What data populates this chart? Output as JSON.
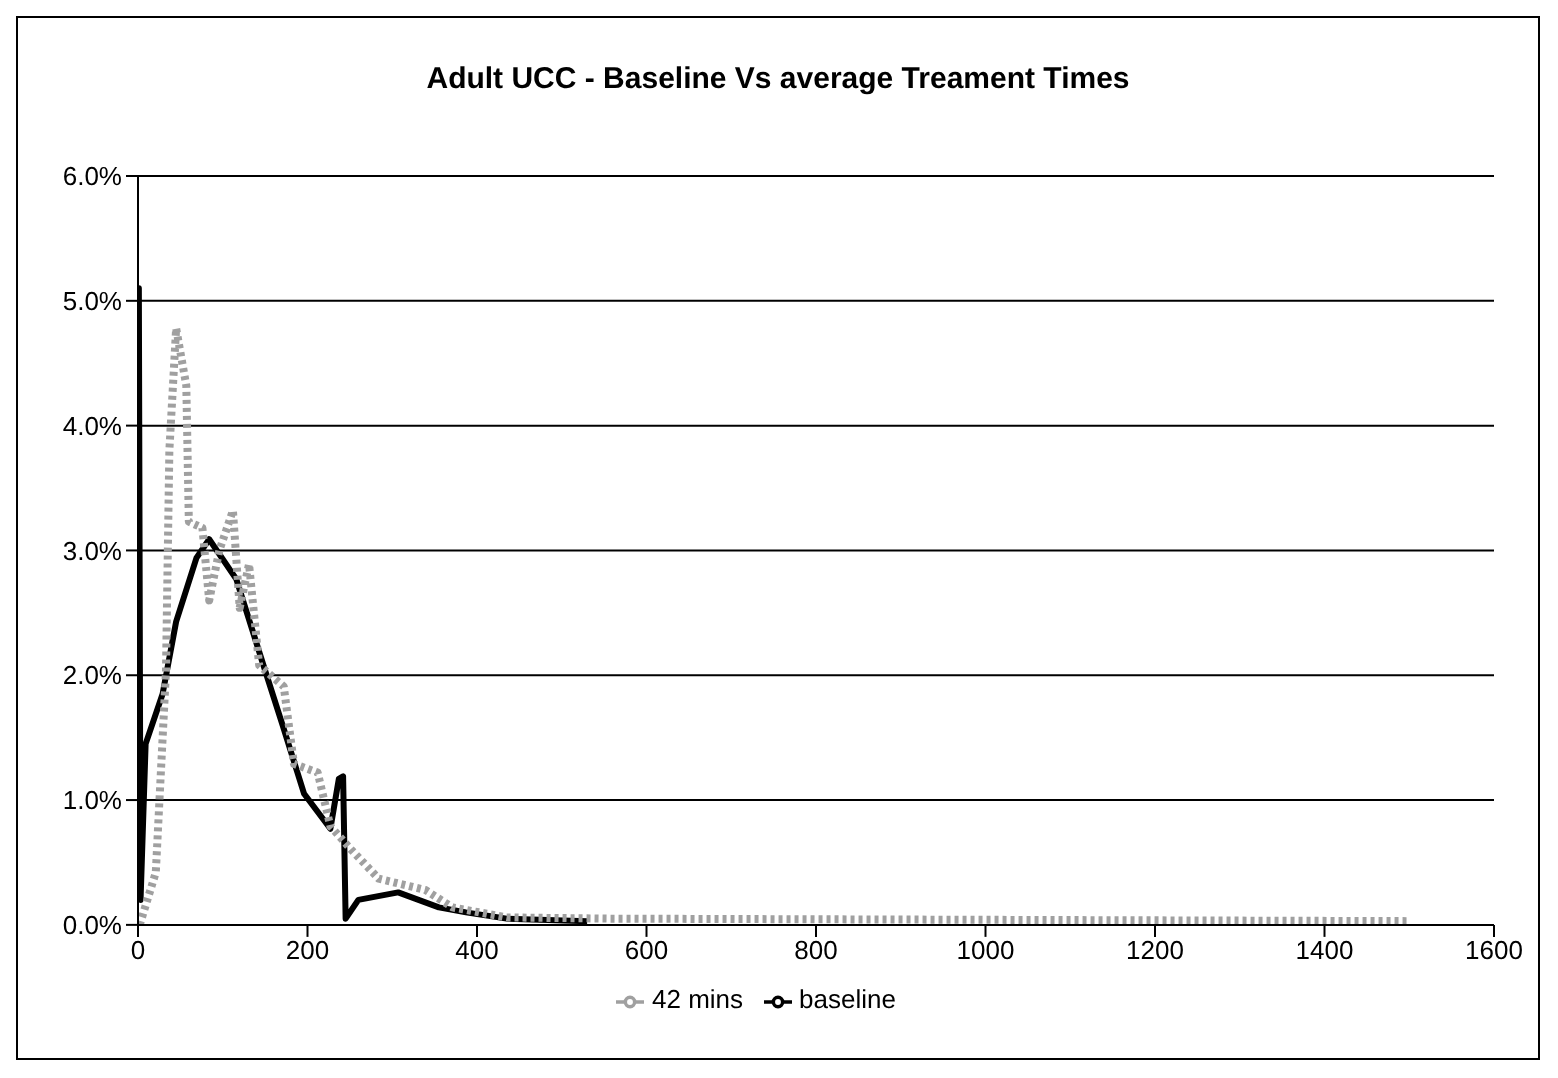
{
  "chart_data": {
    "type": "line",
    "title": "Adult UCC - Baseline Vs average Treament Times",
    "xlim": [
      0,
      1600
    ],
    "xticks": [
      0,
      200,
      400,
      600,
      800,
      1000,
      1200,
      1400,
      1600
    ],
    "ylim": [
      0,
      6
    ],
    "yticks": [
      {
        "value": 0,
        "label": "0.0%"
      },
      {
        "value": 1,
        "label": "1.0%"
      },
      {
        "value": 2,
        "label": "2.0%"
      },
      {
        "value": 3,
        "label": "3.0%"
      },
      {
        "value": 4,
        "label": "4.0%"
      },
      {
        "value": 5,
        "label": "5.0%"
      },
      {
        "value": 6,
        "label": "6.0%"
      }
    ],
    "grid": "y",
    "legend": "bottom",
    "marker": "none",
    "series": [
      {
        "name": "baseline",
        "color": "#000000",
        "line_style": "solid",
        "x": [
          0,
          1,
          3,
          9,
          29,
          45,
          69,
          84,
          116,
          148,
          172,
          196,
          227,
          237,
          242,
          245,
          260,
          307,
          355,
          387,
          435,
          530
        ],
        "values": [
          3.8,
          5.1,
          0.2,
          1.45,
          1.85,
          2.43,
          2.94,
          3.09,
          2.77,
          2.08,
          1.57,
          1.05,
          0.77,
          1.17,
          1.19,
          0.05,
          0.2,
          0.26,
          0.14,
          0.1,
          0.05,
          0.03
        ]
      },
      {
        "name": "42 mins",
        "color": "#a0a0a0",
        "line_style": "dotted",
        "x": [
          2,
          21,
          33,
          37,
          45,
          57,
          60,
          76,
          84,
          96,
          112,
          120,
          131,
          143,
          172,
          184,
          212,
          227,
          252,
          284,
          339,
          371,
          435,
          555,
          1498
        ],
        "values": [
          0,
          0.42,
          2.03,
          3.8,
          4.78,
          4.32,
          3.23,
          3.18,
          2.6,
          3.0,
          3.32,
          2.54,
          2.89,
          2.08,
          1.91,
          1.29,
          1.22,
          0.79,
          0.6,
          0.37,
          0.28,
          0.14,
          0.06,
          0.05,
          0.03
        ]
      }
    ]
  }
}
